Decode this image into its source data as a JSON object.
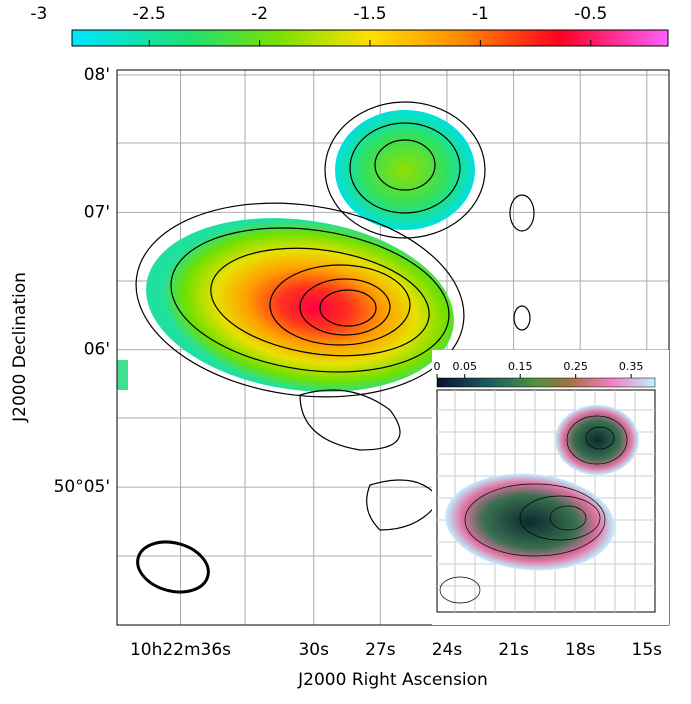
{
  "colorbar": {
    "lim": [
      -2.85,
      -0.15
    ],
    "ticks": [
      -3,
      -2.5,
      -2,
      -1.5,
      -1,
      -0.5
    ]
  },
  "map": {
    "x_label": "J2000 Right Ascension",
    "y_label": "J2000 Declination",
    "xlim": [
      38.86,
      14.0
    ],
    "ylim": [
      3.996,
      8.036
    ],
    "xticks": [
      {
        "value": 36,
        "label": "10h22m36s"
      },
      {
        "value": 30,
        "label": "30s"
      },
      {
        "value": 27,
        "label": "27s"
      },
      {
        "value": 24,
        "label": "24s"
      },
      {
        "value": 21,
        "label": "21s"
      },
      {
        "value": 18,
        "label": "18s"
      },
      {
        "value": 15,
        "label": "15s"
      }
    ],
    "yticks": [
      {
        "value": 8,
        "label": "08'"
      },
      {
        "value": 7,
        "label": "07'"
      },
      {
        "value": 6,
        "label": "06'"
      },
      {
        "value": 5,
        "label": "50°05'"
      }
    ]
  },
  "inset": {
    "colorbar": {
      "lim": [
        0,
        0.393
      ],
      "ticks": [
        0,
        0.05,
        0.15,
        0.25,
        0.35
      ]
    }
  }
}
